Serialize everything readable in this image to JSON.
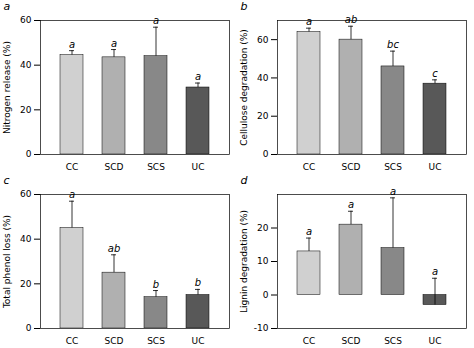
{
  "chart_data": [
    {
      "type": "bar",
      "title": "a",
      "ylabel": "Nitrogen release (%)",
      "categories": [
        "CC",
        "SCD",
        "SCS",
        "UC"
      ],
      "values": [
        44.5,
        43.5,
        44.0,
        30.0
      ],
      "errors": [
        2.0,
        3.5,
        13.0,
        2.0
      ],
      "annotations": [
        "a",
        "a",
        "a",
        "a"
      ],
      "colors": [
        "#d0d0d0",
        "#b0b0b0",
        "#888888",
        "#585858"
      ],
      "ylim": [
        0,
        60
      ],
      "yticks": [
        0,
        20,
        40,
        60
      ],
      "grid": false
    },
    {
      "type": "bar",
      "title": "b",
      "ylabel": "Cellulose degradation (%)",
      "categories": [
        "CC",
        "SCD",
        "SCS",
        "UC"
      ],
      "values": [
        64.0,
        60.0,
        46.0,
        37.0
      ],
      "errors": [
        2.0,
        7.0,
        8.0,
        2.0
      ],
      "annotations": [
        "a",
        "ab",
        "bc",
        "c"
      ],
      "colors": [
        "#d0d0d0",
        "#b0b0b0",
        "#888888",
        "#585858"
      ],
      "ylim": [
        0,
        70
      ],
      "yticks": [
        0,
        20,
        40,
        60
      ],
      "grid": false
    },
    {
      "type": "bar",
      "title": "c",
      "ylabel": "Total phenol loss (%)",
      "categories": [
        "CC",
        "SCD",
        "SCS",
        "UC"
      ],
      "values": [
        45.0,
        25.0,
        14.0,
        15.0
      ],
      "errors": [
        12.0,
        8.0,
        3.0,
        2.5
      ],
      "annotations": [
        "a",
        "ab",
        "b",
        "b"
      ],
      "colors": [
        "#d0d0d0",
        "#b0b0b0",
        "#888888",
        "#585858"
      ],
      "ylim": [
        0,
        60
      ],
      "yticks": [
        0,
        20,
        40,
        60
      ],
      "grid": false
    },
    {
      "type": "bar",
      "title": "d",
      "ylabel": "Lignin degradation (%)",
      "categories": [
        "CC",
        "SCD",
        "SCS",
        "UC"
      ],
      "values": [
        13.0,
        21.0,
        14.0,
        -3.0
      ],
      "errors": [
        4.0,
        4.0,
        15.0,
        8.0
      ],
      "annotations": [
        "a",
        "a",
        "a",
        "a"
      ],
      "colors": [
        "#d0d0d0",
        "#b0b0b0",
        "#888888",
        "#585858"
      ],
      "ylim": [
        -10,
        30
      ],
      "yticks": [
        -10,
        0,
        10,
        20
      ],
      "grid": false
    }
  ]
}
